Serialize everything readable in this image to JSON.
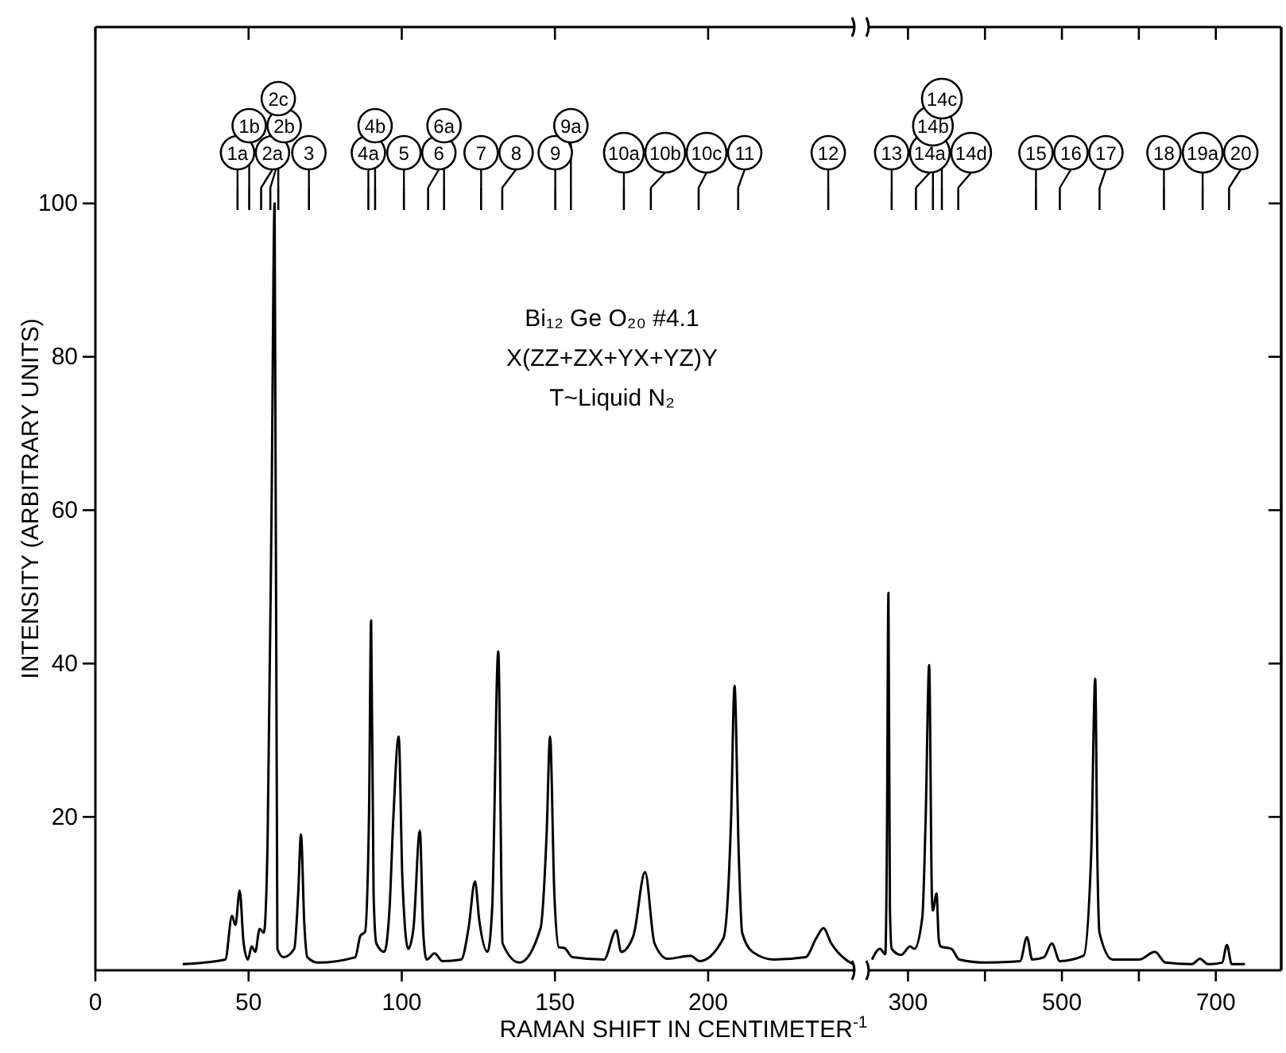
{
  "chart_data": [
    {
      "type": "line",
      "xlabel": "RAMAN SHIFT IN CENTIMETER$^{-1}$",
      "ylabel": "INTENSITY (ARBITRARY UNITS)",
      "xlim": [
        0,
        248
      ],
      "xticks": [
        0,
        50,
        100,
        150,
        200
      ],
      "ylim": [
        0,
        123
      ],
      "yticks": [
        20,
        40,
        60,
        80,
        100
      ],
      "series": [
        {
          "color": "#000000",
          "x": [
            28.5,
            42.4,
            44.6,
            45.7,
            47.1,
            48.4,
            49.8,
            51,
            52.2,
            53.6,
            55,
            56.2,
            57.5,
            58.5,
            59.4,
            61.4,
            64.9,
            66.2,
            67.1,
            68.2,
            69.2,
            72.7,
            84.8,
            86.5,
            88,
            89.3,
            90,
            90.8,
            91.7,
            94.3,
            96,
            97.2,
            99,
            100.2,
            102.1,
            103.8,
            105.9,
            107,
            108.1,
            110.7,
            113.3,
            119.4,
            121.8,
            123.9,
            125.3,
            128,
            129.5,
            131.5,
            132.9,
            138.4,
            145.3,
            147.3,
            148.4,
            149.8,
            151.3,
            153.1,
            155.7,
            166,
            170,
            171.6,
            175.6,
            179.4,
            182.5,
            186.8,
            194.3,
            197.2,
            205,
            207.5,
            208.6,
            210,
            211.1,
            214.5,
            221.4,
            231.8,
            235.3,
            237.6,
            240.2,
            244.9,
            247.3
          ],
          "values": [
            0.8,
            1.4,
            7.1,
            5.9,
            10.4,
            3.5,
            1.4,
            3.1,
            2.4,
            5.4,
            4.9,
            16.6,
            60,
            100,
            2.8,
            1.7,
            2.8,
            10,
            17.7,
            6,
            1.7,
            1.0,
            1.7,
            4.5,
            5,
            20,
            45.6,
            10,
            3.5,
            2.4,
            8,
            19.4,
            30.5,
            12,
            2.8,
            5.4,
            18.2,
            5,
            1.4,
            2.2,
            1.2,
            1.4,
            5.5,
            11.6,
            6.5,
            2.4,
            8,
            41.6,
            3.5,
            1.0,
            5.5,
            18,
            30.5,
            10,
            3.0,
            2.9,
            1.7,
            1.4,
            5.2,
            2.4,
            4.5,
            12.8,
            3.5,
            1.5,
            1.9,
            1.2,
            4.2,
            20,
            37.1,
            15,
            4.9,
            2.4,
            1.4,
            1.7,
            4.2,
            5.5,
            3.5,
            1.4,
            0.8
          ]
        }
      ],
      "annotations": [
        "Bi₁₂ Ge O₂₀ #4.1",
        "X(ZZ+ZX+YX+YZ)Y",
        "T~Liquid N₂",
        {
          "text": "1a",
          "x": 46.4
        },
        {
          "text": "1b",
          "x": 50.2
        },
        {
          "text": "2a",
          "x": 54.1
        },
        {
          "text": "2b",
          "x": 57.1
        },
        {
          "text": "2c",
          "x": 59.7
        },
        {
          "text": "3",
          "x": 69.7
        },
        {
          "text": "4a",
          "x": 89.1
        },
        {
          "text": "4b",
          "x": 91.3
        },
        {
          "text": "5",
          "x": 100.7
        },
        {
          "text": "6",
          "x": 108.6
        },
        {
          "text": "6a",
          "x": 113.8
        },
        {
          "text": "7",
          "x": 125.9
        },
        {
          "text": "8",
          "x": 132.8
        },
        {
          "text": "9",
          "x": 150.1
        },
        {
          "text": "9a",
          "x": 155.2
        },
        {
          "text": "10a",
          "x": 172.5
        },
        {
          "text": "10b",
          "x": 181.3
        },
        {
          "text": "10c",
          "x": 196.9
        },
        {
          "text": "11",
          "x": 209.8
        },
        {
          "text": "12",
          "x": 239.2
        }
      ]
    },
    {
      "type": "line",
      "xlim": [
        250,
        785
      ],
      "xticks": [
        300,
        {
          "value": 400,
          "label": null
        },
        500,
        {
          "value": 600,
          "label": null
        },
        700
      ],
      "ylim": [
        0,
        123
      ],
      "yticks": [
        20,
        40,
        60,
        80,
        100
      ],
      "tick_labels": "x",
      "series": [
        {
          "color": "#000000",
          "x": [
            253.2,
            263.5,
            270.5,
            272.5,
            274.6,
            276.5,
            278.8,
            291.1,
            302.8,
            308.2,
            318.6,
            323,
            327.5,
            331,
            332.2,
            337.1,
            340,
            342.6,
            356.4,
            366.7,
            401,
            445.7,
            454.6,
            461.4,
            476.6,
            486.9,
            497.3,
            528.2,
            538,
            543.3,
            546,
            548.8,
            565.9,
            600.3,
            620.9,
            634.6,
            669,
            679.4,
            689.7,
            708.2,
            714.4,
            720.6,
            737.8
          ],
          "values": [
            1.4,
            2.8,
            2.1,
            15,
            49.2,
            8,
            2.8,
            2.0,
            3.1,
            2.8,
            6.9,
            20,
            39.8,
            10,
            7.8,
            10.0,
            4,
            3.1,
            2.8,
            1.4,
            1.0,
            1.2,
            4.3,
            1.4,
            1.7,
            3.5,
            1.2,
            1.9,
            15,
            38,
            15,
            4.9,
            1.4,
            1.4,
            2.4,
            1.0,
            0.8,
            1.5,
            0.8,
            1.0,
            3.3,
            0.8,
            0.8
          ]
        }
      ],
      "annotations": [
        {
          "text": "13",
          "x": 278.8
        },
        {
          "text": "14a",
          "x": 310.3
        },
        {
          "text": "14b",
          "x": 332.4
        },
        {
          "text": "14c",
          "x": 344
        },
        {
          "text": "14d",
          "x": 365.3
        },
        {
          "text": "15",
          "x": 466.3
        },
        {
          "text": "16",
          "x": 497.3
        },
        {
          "text": "17",
          "x": 548.9
        },
        {
          "text": "18",
          "x": 632.6
        },
        {
          "text": "19a",
          "x": 682.9
        },
        {
          "text": "20",
          "x": 717.2
        }
      ]
    }
  ]
}
